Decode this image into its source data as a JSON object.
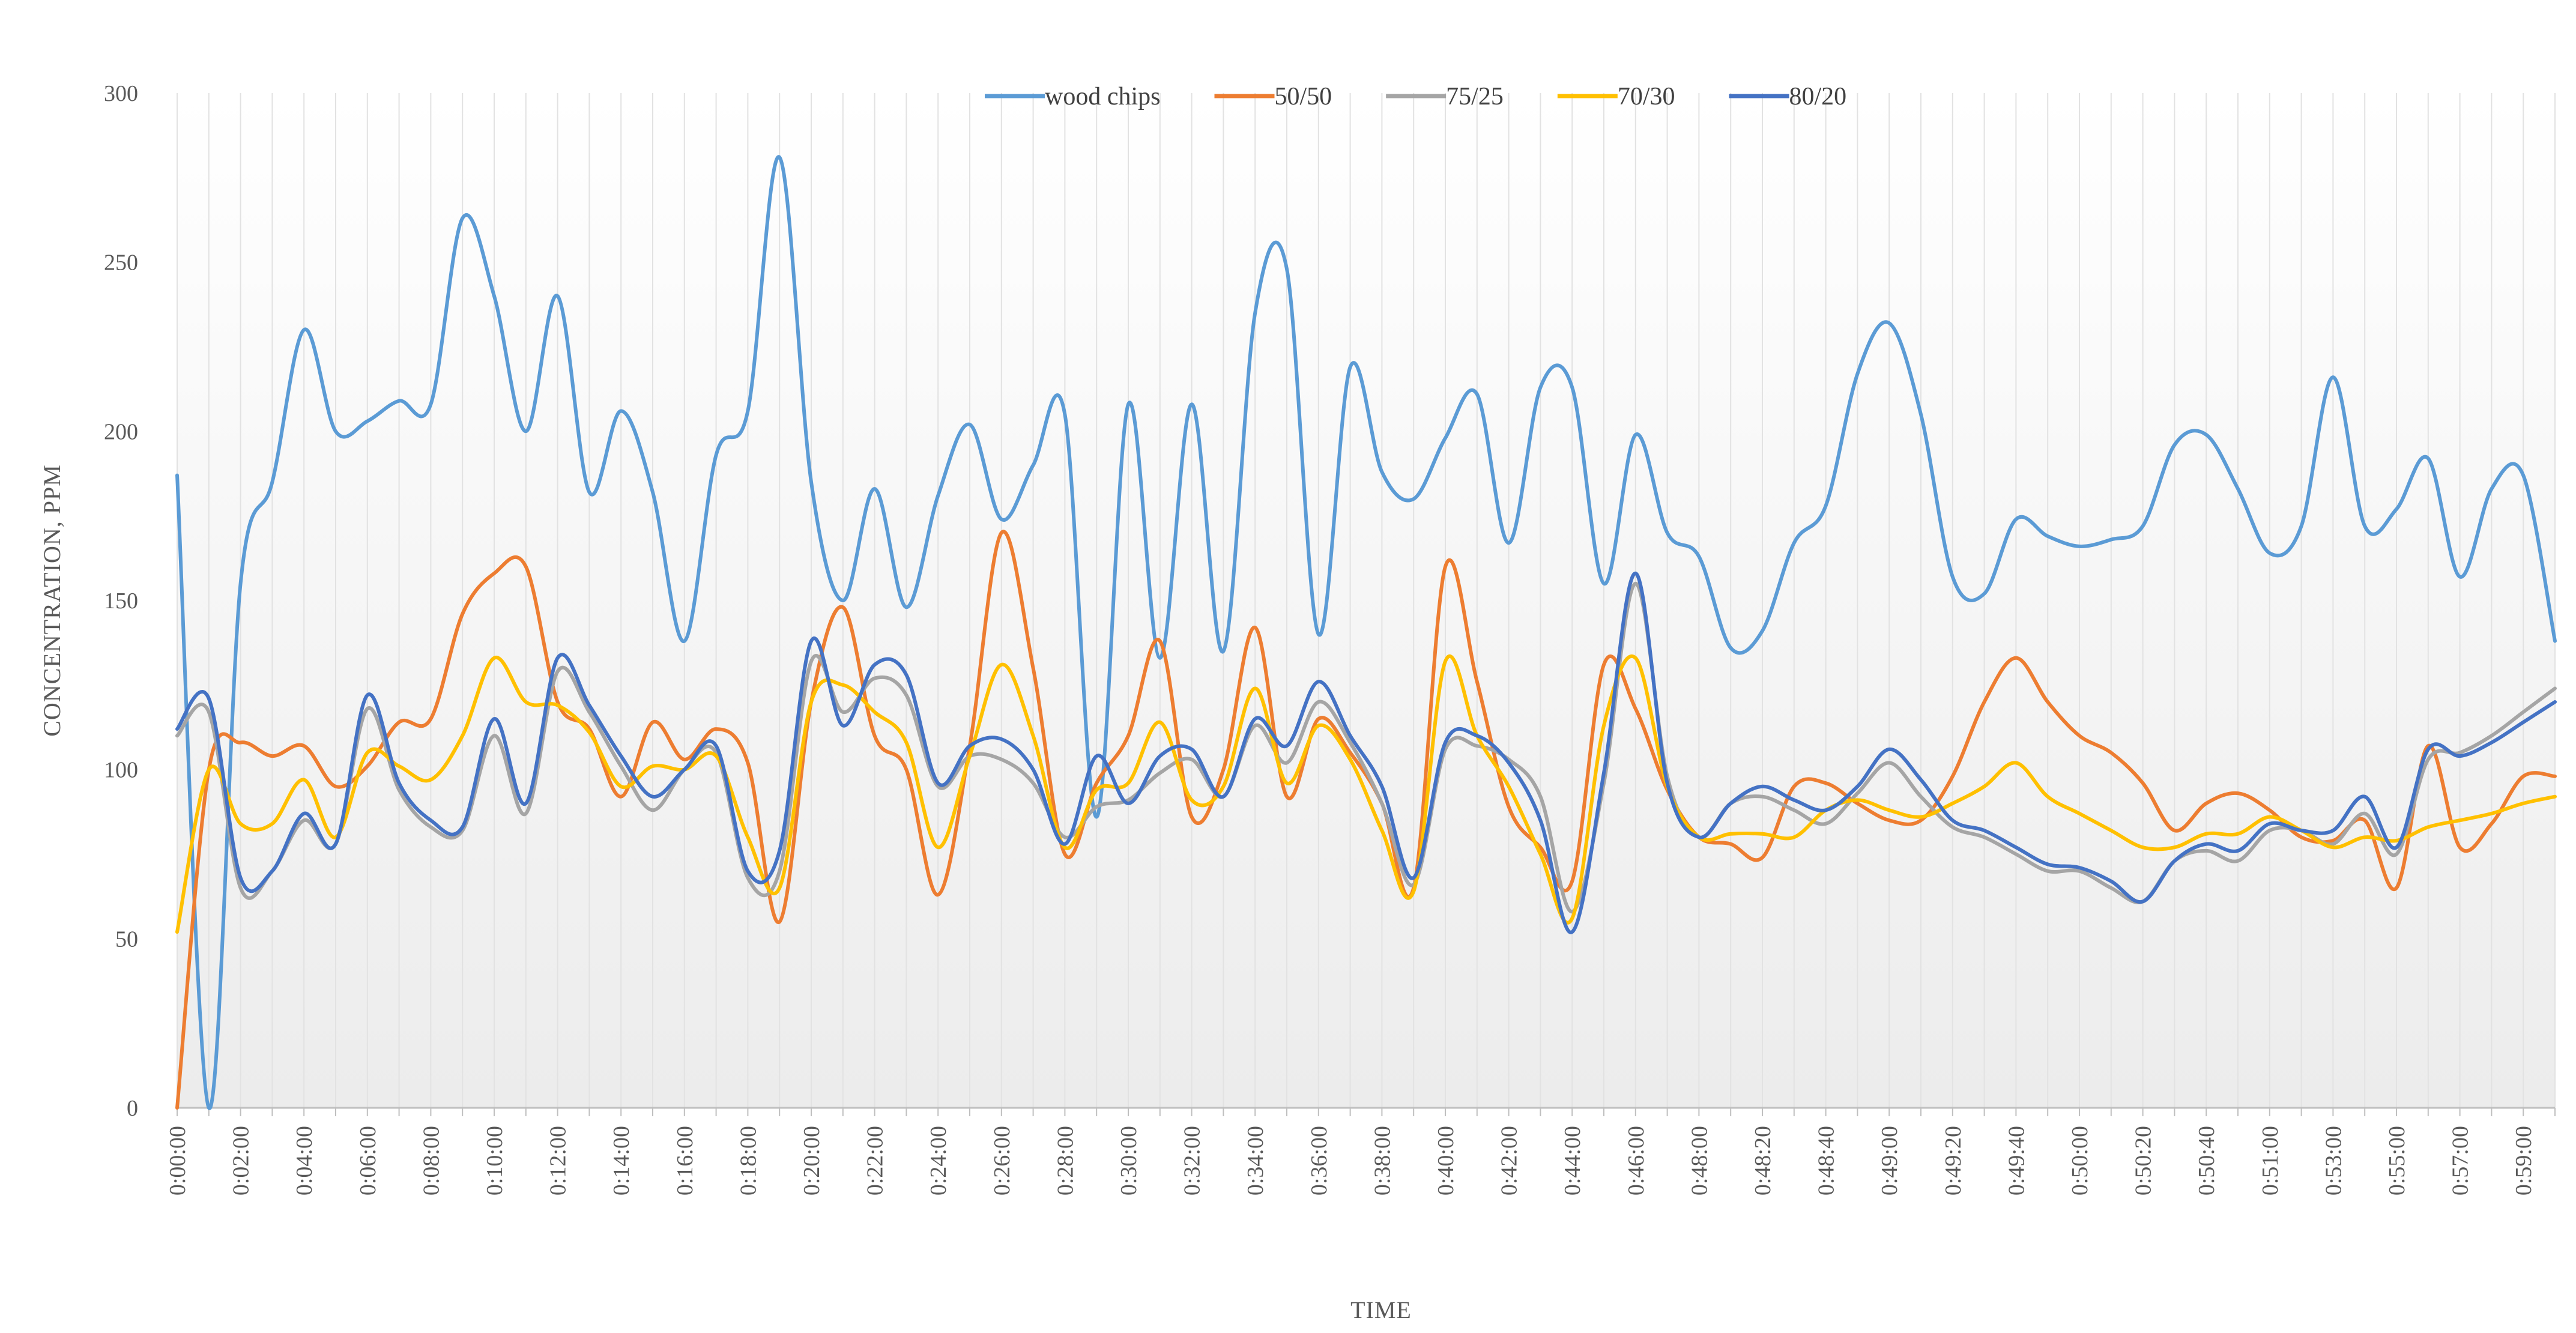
{
  "chart_data": {
    "type": "line",
    "title": "",
    "xlabel": "TIME",
    "ylabel": "CONCENTRATION, PPM",
    "ylim": [
      0,
      300
    ],
    "yticks": [
      0,
      50,
      100,
      150,
      200,
      250,
      300
    ],
    "grid": "vertical",
    "legend_position": "top",
    "categories": [
      "0:00:00",
      "0:01:00",
      "0:02:00",
      "0:03:00",
      "0:04:00",
      "0:05:00",
      "0:06:00",
      "0:07:00",
      "0:08:00",
      "0:09:00",
      "0:10:00",
      "0:11:00",
      "0:12:00",
      "0:13:00",
      "0:14:00",
      "0:15:00",
      "0:16:00",
      "0:17:00",
      "0:18:00",
      "0:19:00",
      "0:20:00",
      "0:21:00",
      "0:22:00",
      "0:23:00",
      "0:24:00",
      "0:25:00",
      "0:26:00",
      "0:27:00",
      "0:28:00",
      "0:29:00",
      "0:30:00",
      "0:31:00",
      "0:32:00",
      "0:33:00",
      "0:34:00",
      "0:35:00",
      "0:36:00",
      "0:37:00",
      "0:38:00",
      "0:39:00",
      "0:40:00",
      "0:41:00",
      "0:42:00",
      "0:43:00",
      "0:44:00",
      "0:45:00",
      "0:46:00",
      "0:47:00",
      "0:48:00",
      "0:48:10",
      "0:48:20",
      "0:48:30",
      "0:48:40",
      "0:48:50",
      "0:49:00",
      "0:49:10",
      "0:49:20",
      "0:49:30",
      "0:49:40",
      "0:49:50",
      "0:50:00",
      "0:50:10",
      "0:50:20",
      "0:50:30",
      "0:50:40",
      "0:50:50",
      "0:51:00",
      "0:52:00",
      "0:53:00",
      "0:54:00",
      "0:55:00",
      "0:56:00",
      "0:57:00",
      "0:58:00",
      "0:59:00",
      "1:00:00"
    ],
    "tick_labels": [
      "0:00:00",
      "0:02:00",
      "0:04:00",
      "0:06:00",
      "0:08:00",
      "0:10:00",
      "0:12:00",
      "0:14:00",
      "0:16:00",
      "0:18:00",
      "0:20:00",
      "0:22:00",
      "0:24:00",
      "0:26:00",
      "0:28:00",
      "0:30:00",
      "0:32:00",
      "0:34:00",
      "0:36:00",
      "0:38:00",
      "0:40:00",
      "0:42:00",
      "0:44:00",
      "0:46:00",
      "0:48:00",
      "0:48:20",
      "0:48:40",
      "0:49:00",
      "0:49:20",
      "0:49:40",
      "0:50:00",
      "0:50:20",
      "0:50:40",
      "0:51:00",
      "0:53:00",
      "0:55:00",
      "0:57:00",
      "0:59:00"
    ],
    "series": [
      {
        "name": "wood chips",
        "color": "#5B9BD5",
        "values": [
          187,
          0,
          155,
          185,
          230,
          200,
          203,
          209,
          208,
          263,
          240,
          200,
          240,
          182,
          206,
          182,
          138,
          193,
          206,
          281,
          185,
          150,
          183,
          148,
          181,
          202,
          174,
          190,
          205,
          86,
          208,
          133,
          208,
          135,
          235,
          248,
          140,
          219,
          188,
          180,
          198,
          211,
          167,
          213,
          213,
          155,
          199,
          170,
          163,
          136,
          141,
          167,
          178,
          217,
          232,
          205,
          157,
          152,
          174,
          169,
          166,
          168,
          172,
          196,
          199,
          183,
          164,
          172,
          216,
          172,
          177,
          192,
          157,
          183,
          187,
          138
        ]
      },
      {
        "name": "50/50",
        "color": "#ED7D31",
        "values": [
          0,
          100,
          108,
          104,
          107,
          95,
          101,
          114,
          115,
          146,
          158,
          160,
          120,
          112,
          92,
          114,
          103,
          112,
          102,
          55,
          120,
          148,
          110,
          100,
          63,
          107,
          170,
          130,
          75,
          96,
          110,
          138,
          86,
          100,
          142,
          92,
          115,
          105,
          90,
          65,
          160,
          126,
          89,
          77,
          67,
          131,
          118,
          94,
          80,
          78,
          74,
          95,
          96,
          90,
          85,
          85,
          98,
          120,
          133,
          120,
          110,
          105,
          96,
          82,
          90,
          93,
          88,
          80,
          79,
          85,
          65,
          107,
          77,
          84,
          98,
          98
        ]
      },
      {
        "name": "75/25",
        "color": "#A5A5A5",
        "values": [
          110,
          117,
          65,
          70,
          85,
          78,
          118,
          94,
          83,
          82,
          110,
          87,
          129,
          117,
          101,
          88,
          100,
          105,
          68,
          70,
          132,
          117,
          127,
          122,
          95,
          104,
          103,
          96,
          80,
          89,
          91,
          99,
          103,
          92,
          113,
          102,
          120,
          108,
          90,
          66,
          106,
          107,
          103,
          92,
          58,
          96,
          155,
          98,
          80,
          90,
          92,
          88,
          84,
          93,
          102,
          92,
          83,
          80,
          75,
          70,
          70,
          65,
          61,
          73,
          76,
          73,
          82,
          82,
          78,
          87,
          75,
          103,
          105,
          110,
          117,
          124
        ]
      },
      {
        "name": "70/30",
        "color": "#FFC000",
        "values": [
          52,
          100,
          84,
          84,
          97,
          80,
          105,
          101,
          97,
          110,
          133,
          120,
          119,
          111,
          95,
          101,
          100,
          104,
          80,
          65,
          120,
          125,
          117,
          108,
          77,
          104,
          131,
          110,
          77,
          94,
          96,
          114,
          91,
          95,
          124,
          96,
          113,
          103,
          82,
          64,
          132,
          110,
          95,
          75,
          56,
          113,
          133,
          95,
          80,
          81,
          81,
          80,
          88,
          91,
          88,
          86,
          90,
          95,
          102,
          92,
          87,
          82,
          77,
          77,
          81,
          81,
          86,
          82,
          77,
          80,
          79,
          83,
          85,
          87,
          90,
          92
        ]
      },
      {
        "name": "80/20",
        "color": "#4472C4",
        "values": [
          112,
          121,
          68,
          70,
          87,
          78,
          122,
          96,
          85,
          83,
          115,
          90,
          133,
          119,
          104,
          92,
          100,
          107,
          70,
          76,
          138,
          113,
          131,
          128,
          96,
          107,
          109,
          100,
          78,
          104,
          90,
          104,
          106,
          92,
          115,
          107,
          126,
          110,
          95,
          68,
          108,
          110,
          102,
          85,
          52,
          99,
          158,
          96,
          80,
          90,
          95,
          91,
          88,
          95,
          106,
          97,
          85,
          82,
          77,
          72,
          71,
          67,
          61,
          73,
          78,
          76,
          84,
          82,
          82,
          92,
          77,
          106,
          104,
          108,
          114,
          120
        ]
      }
    ]
  }
}
